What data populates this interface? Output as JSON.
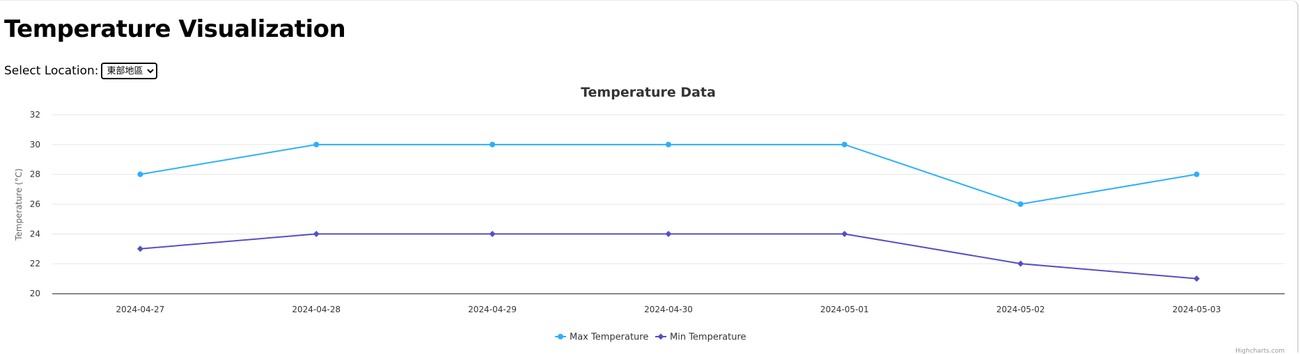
{
  "page": {
    "title": "Temperature Visualization",
    "location_label": "Select Location:",
    "location_selected": "東部地區"
  },
  "chart_data": {
    "type": "line",
    "title": "Temperature Data",
    "xlabel": "",
    "ylabel": "Temperature (°C)",
    "categories": [
      "2024-04-27",
      "2024-04-28",
      "2024-04-29",
      "2024-04-30",
      "2024-05-01",
      "2024-05-02",
      "2024-05-03"
    ],
    "ylim": [
      20,
      32
    ],
    "yticks": [
      20,
      22,
      24,
      26,
      28,
      30,
      32
    ],
    "grid": true,
    "legend_position": "bottom-center",
    "series": [
      {
        "name": "Max Temperature",
        "values": [
          28,
          30,
          30,
          30,
          30,
          26,
          28
        ],
        "color": "#2caffe",
        "marker": "circle"
      },
      {
        "name": "Min Temperature",
        "values": [
          23,
          24,
          24,
          24,
          24,
          22,
          21
        ],
        "color": "#544fc5",
        "marker": "diamond"
      }
    ],
    "credits": "Highcharts.com"
  }
}
